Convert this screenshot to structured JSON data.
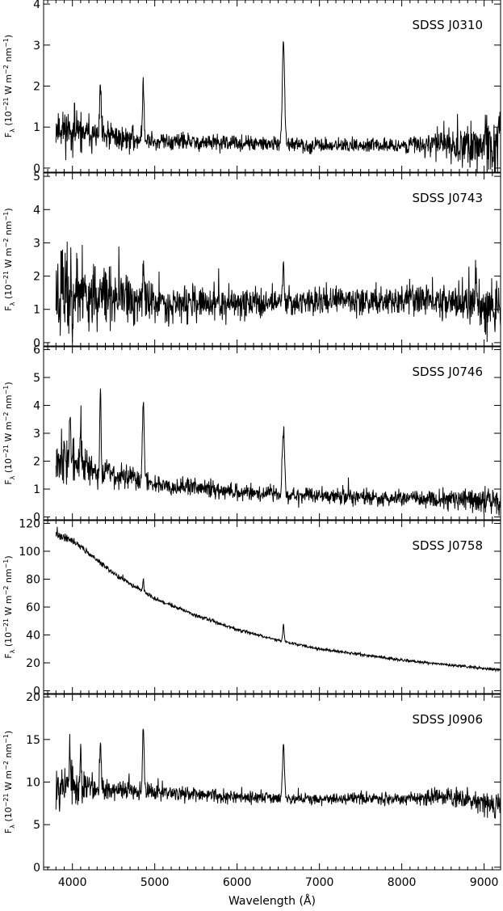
{
  "figure": {
    "xlabel": "Wavelength (Å)",
    "ylabel_parts": {
      "main": "F",
      "sub": "λ",
      "a": "(10",
      "exp1": "−21",
      "b": " W m",
      "exp2": "−2",
      "c": " nm",
      "exp3": "−1",
      "d": ")"
    }
  },
  "chart_data": [
    {
      "type": "line",
      "name": "SDSS J0310",
      "label": "SDSS J0310",
      "xlim": [
        3650,
        9200
      ],
      "ylim": [
        -0.1,
        4.1
      ],
      "xticks": [
        4000,
        5000,
        6000,
        7000,
        8000,
        9000
      ],
      "yticks": [
        0,
        1,
        2,
        3,
        4
      ],
      "base": [
        [
          3800,
          1.0
        ],
        [
          4200,
          0.8
        ],
        [
          5000,
          0.65
        ],
        [
          6000,
          0.6
        ],
        [
          7000,
          0.55
        ],
        [
          8000,
          0.55
        ],
        [
          8600,
          0.6
        ],
        [
          9200,
          0.5
        ]
      ],
      "noise": [
        [
          3800,
          0.55
        ],
        [
          4300,
          0.35
        ],
        [
          5000,
          0.2
        ],
        [
          6500,
          0.15
        ],
        [
          8000,
          0.15
        ],
        [
          8500,
          0.4
        ],
        [
          9200,
          0.7
        ]
      ],
      "lines": [
        [
          4340,
          1.3,
          8
        ],
        [
          4861,
          1.4,
          10
        ],
        [
          6563,
          2.5,
          14
        ]
      ],
      "seed": 11,
      "grid": false
    },
    {
      "type": "line",
      "name": "SDSS J0743",
      "label": "SDSS J0743",
      "xlim": [
        3650,
        9200
      ],
      "ylim": [
        -0.1,
        5.1
      ],
      "xticks": [
        4000,
        5000,
        6000,
        7000,
        8000,
        9000
      ],
      "yticks": [
        0,
        1,
        2,
        3,
        4,
        5
      ],
      "base": [
        [
          3800,
          1.6
        ],
        [
          4500,
          1.3
        ],
        [
          5500,
          1.15
        ],
        [
          7000,
          1.25
        ],
        [
          8500,
          1.3
        ],
        [
          9200,
          1.0
        ]
      ],
      "noise": [
        [
          3800,
          1.8
        ],
        [
          4200,
          0.9
        ],
        [
          5000,
          0.55
        ],
        [
          6500,
          0.35
        ],
        [
          8000,
          0.4
        ],
        [
          9200,
          0.6
        ]
      ],
      "lines": [
        [
          4861,
          1.4,
          8
        ],
        [
          6563,
          1.2,
          10
        ],
        [
          8900,
          1.2,
          8
        ]
      ],
      "seed": 23,
      "grid": false
    },
    {
      "type": "line",
      "name": "SDSS J0746",
      "label": "SDSS J0746",
      "xlim": [
        3650,
        9200
      ],
      "ylim": [
        -0.1,
        6.1
      ],
      "xticks": [
        4000,
        5000,
        6000,
        7000,
        8000,
        9000
      ],
      "yticks": [
        0,
        1,
        2,
        3,
        4,
        5,
        6
      ],
      "base": [
        [
          3800,
          2.3
        ],
        [
          4200,
          1.7
        ],
        [
          5000,
          1.2
        ],
        [
          6000,
          0.9
        ],
        [
          7000,
          0.75
        ],
        [
          8000,
          0.65
        ],
        [
          9200,
          0.6
        ]
      ],
      "noise": [
        [
          3800,
          0.9
        ],
        [
          4300,
          0.5
        ],
        [
          5000,
          0.3
        ],
        [
          6500,
          0.25
        ],
        [
          8000,
          0.25
        ],
        [
          9200,
          0.4
        ]
      ],
      "lines": [
        [
          3970,
          1.6,
          8
        ],
        [
          4101,
          1.5,
          8
        ],
        [
          4340,
          2.6,
          9
        ],
        [
          4861,
          3.0,
          11
        ],
        [
          6563,
          2.3,
          14
        ]
      ],
      "seed": 37,
      "grid": false
    },
    {
      "type": "line",
      "name": "SDSS J0758",
      "label": "SDSS J0758",
      "xlim": [
        3650,
        9200
      ],
      "ylim": [
        -2,
        122
      ],
      "xticks": [
        4000,
        5000,
        6000,
        7000,
        8000,
        9000
      ],
      "yticks": [
        0,
        20,
        40,
        60,
        80,
        100,
        120
      ],
      "base": [
        [
          3800,
          112
        ],
        [
          4000,
          108
        ],
        [
          4500,
          84
        ],
        [
          5000,
          66
        ],
        [
          5500,
          54
        ],
        [
          6000,
          44
        ],
        [
          6500,
          36
        ],
        [
          7000,
          30
        ],
        [
          7500,
          26
        ],
        [
          8000,
          22
        ],
        [
          8500,
          19
        ],
        [
          9000,
          16
        ],
        [
          9200,
          15
        ]
      ],
      "noise": [
        [
          3800,
          2.5
        ],
        [
          4500,
          1.5
        ],
        [
          6000,
          1.0
        ],
        [
          9200,
          0.9
        ]
      ],
      "lines": [
        [
          4861,
          10,
          6
        ],
        [
          6563,
          13,
          8
        ]
      ],
      "seed": 41,
      "grid": false
    },
    {
      "type": "line",
      "name": "SDSS J0906",
      "label": "SDSS J0906",
      "xlim": [
        3650,
        9200
      ],
      "ylim": [
        -0.3,
        20.3
      ],
      "xticks": [
        4000,
        5000,
        6000,
        7000,
        8000,
        9000
      ],
      "yticks": [
        0,
        5,
        10,
        15,
        20
      ],
      "base": [
        [
          3800,
          10
        ],
        [
          4200,
          9.2
        ],
        [
          5000,
          8.8
        ],
        [
          6000,
          8.3
        ],
        [
          7000,
          8.0
        ],
        [
          8000,
          8.1
        ],
        [
          8600,
          8.3
        ],
        [
          9200,
          7.0
        ]
      ],
      "noise": [
        [
          3800,
          2.8
        ],
        [
          4300,
          1.2
        ],
        [
          5000,
          0.8
        ],
        [
          6500,
          0.6
        ],
        [
          8000,
          0.6
        ],
        [
          8600,
          1.0
        ],
        [
          9200,
          1.4
        ]
      ],
      "lines": [
        [
          3970,
          5,
          6
        ],
        [
          4101,
          5,
          6
        ],
        [
          4340,
          6.5,
          9
        ],
        [
          4861,
          7.5,
          10
        ],
        [
          6563,
          6.5,
          12
        ]
      ],
      "seed": 53,
      "grid": false
    }
  ]
}
